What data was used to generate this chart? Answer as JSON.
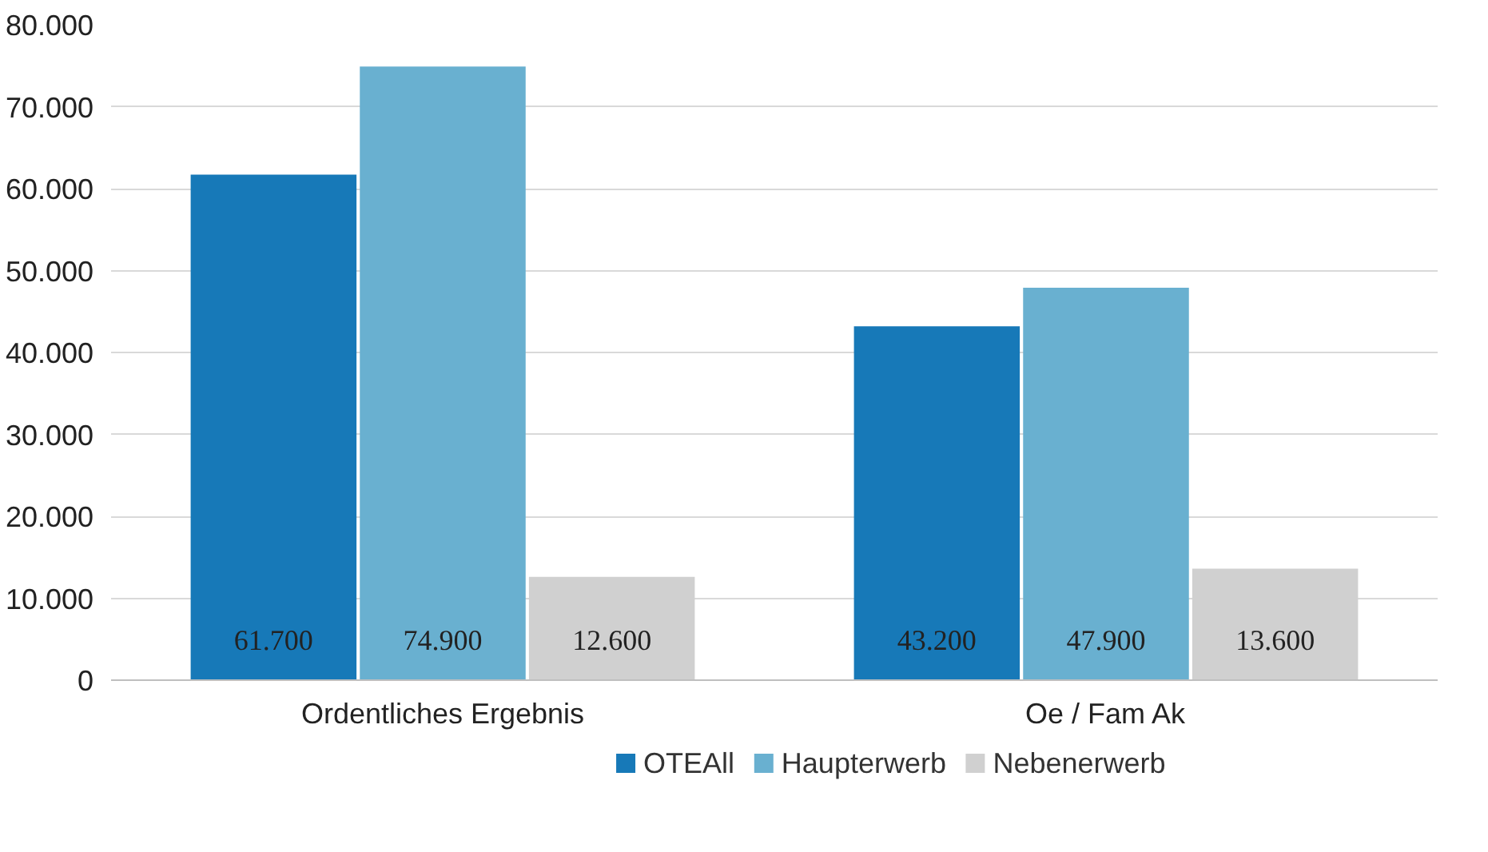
{
  "chart_data": {
    "type": "bar",
    "categories": [
      "Ordentliches Ergebnis",
      "Oe / Fam Ak"
    ],
    "series": [
      {
        "name": "OTEAll",
        "color": "#1779b8",
        "values": [
          61700,
          43200
        ],
        "value_labels": [
          "61.700",
          "43.200"
        ]
      },
      {
        "name": "Haupterwerb",
        "color": "#69b0d0",
        "values": [
          74900,
          47900
        ],
        "value_labels": [
          "74.900",
          "47.900"
        ]
      },
      {
        "name": "Nebenerwerb",
        "color": "#d0d0d0",
        "values": [
          12600,
          13600
        ],
        "value_labels": [
          "12.600",
          "13.600"
        ]
      }
    ],
    "ylim": [
      0,
      80000
    ],
    "yticks": [
      {
        "value": 0,
        "label": "0"
      },
      {
        "value": 10000,
        "label": "10.000"
      },
      {
        "value": 20000,
        "label": "20.000"
      },
      {
        "value": 30000,
        "label": "30.000"
      },
      {
        "value": 40000,
        "label": "40.000"
      },
      {
        "value": 50000,
        "label": "50.000"
      },
      {
        "value": 60000,
        "label": "60.000"
      },
      {
        "value": 70000,
        "label": "70.000"
      },
      {
        "value": 80000,
        "label": "80.000"
      }
    ],
    "grid": "y",
    "legend": "bottom"
  }
}
